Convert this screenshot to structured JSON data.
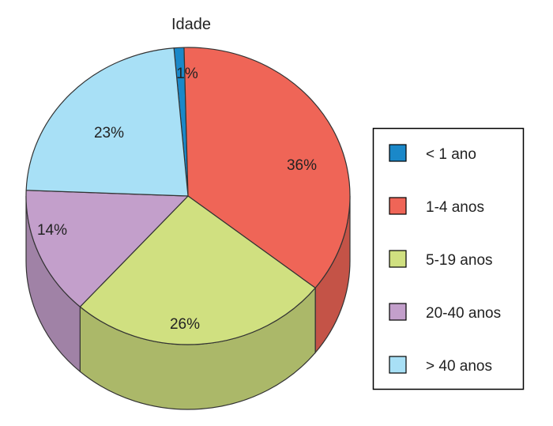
{
  "chart_data": {
    "type": "pie",
    "title": "Idade",
    "categories": [
      "< 1 ano",
      "1-4 anos",
      "5-19 anos",
      "20-40 anos",
      "> 40 anos"
    ],
    "values": [
      1,
      36,
      26,
      14,
      23
    ],
    "value_labels": [
      "1%",
      "36%",
      "26%",
      "14%",
      "23%"
    ],
    "colors": [
      "#1a88c9",
      "#ef6557",
      "#d0e080",
      "#c39fcb",
      "#a8e0f6"
    ],
    "style": "3d",
    "legend_position": "right"
  }
}
